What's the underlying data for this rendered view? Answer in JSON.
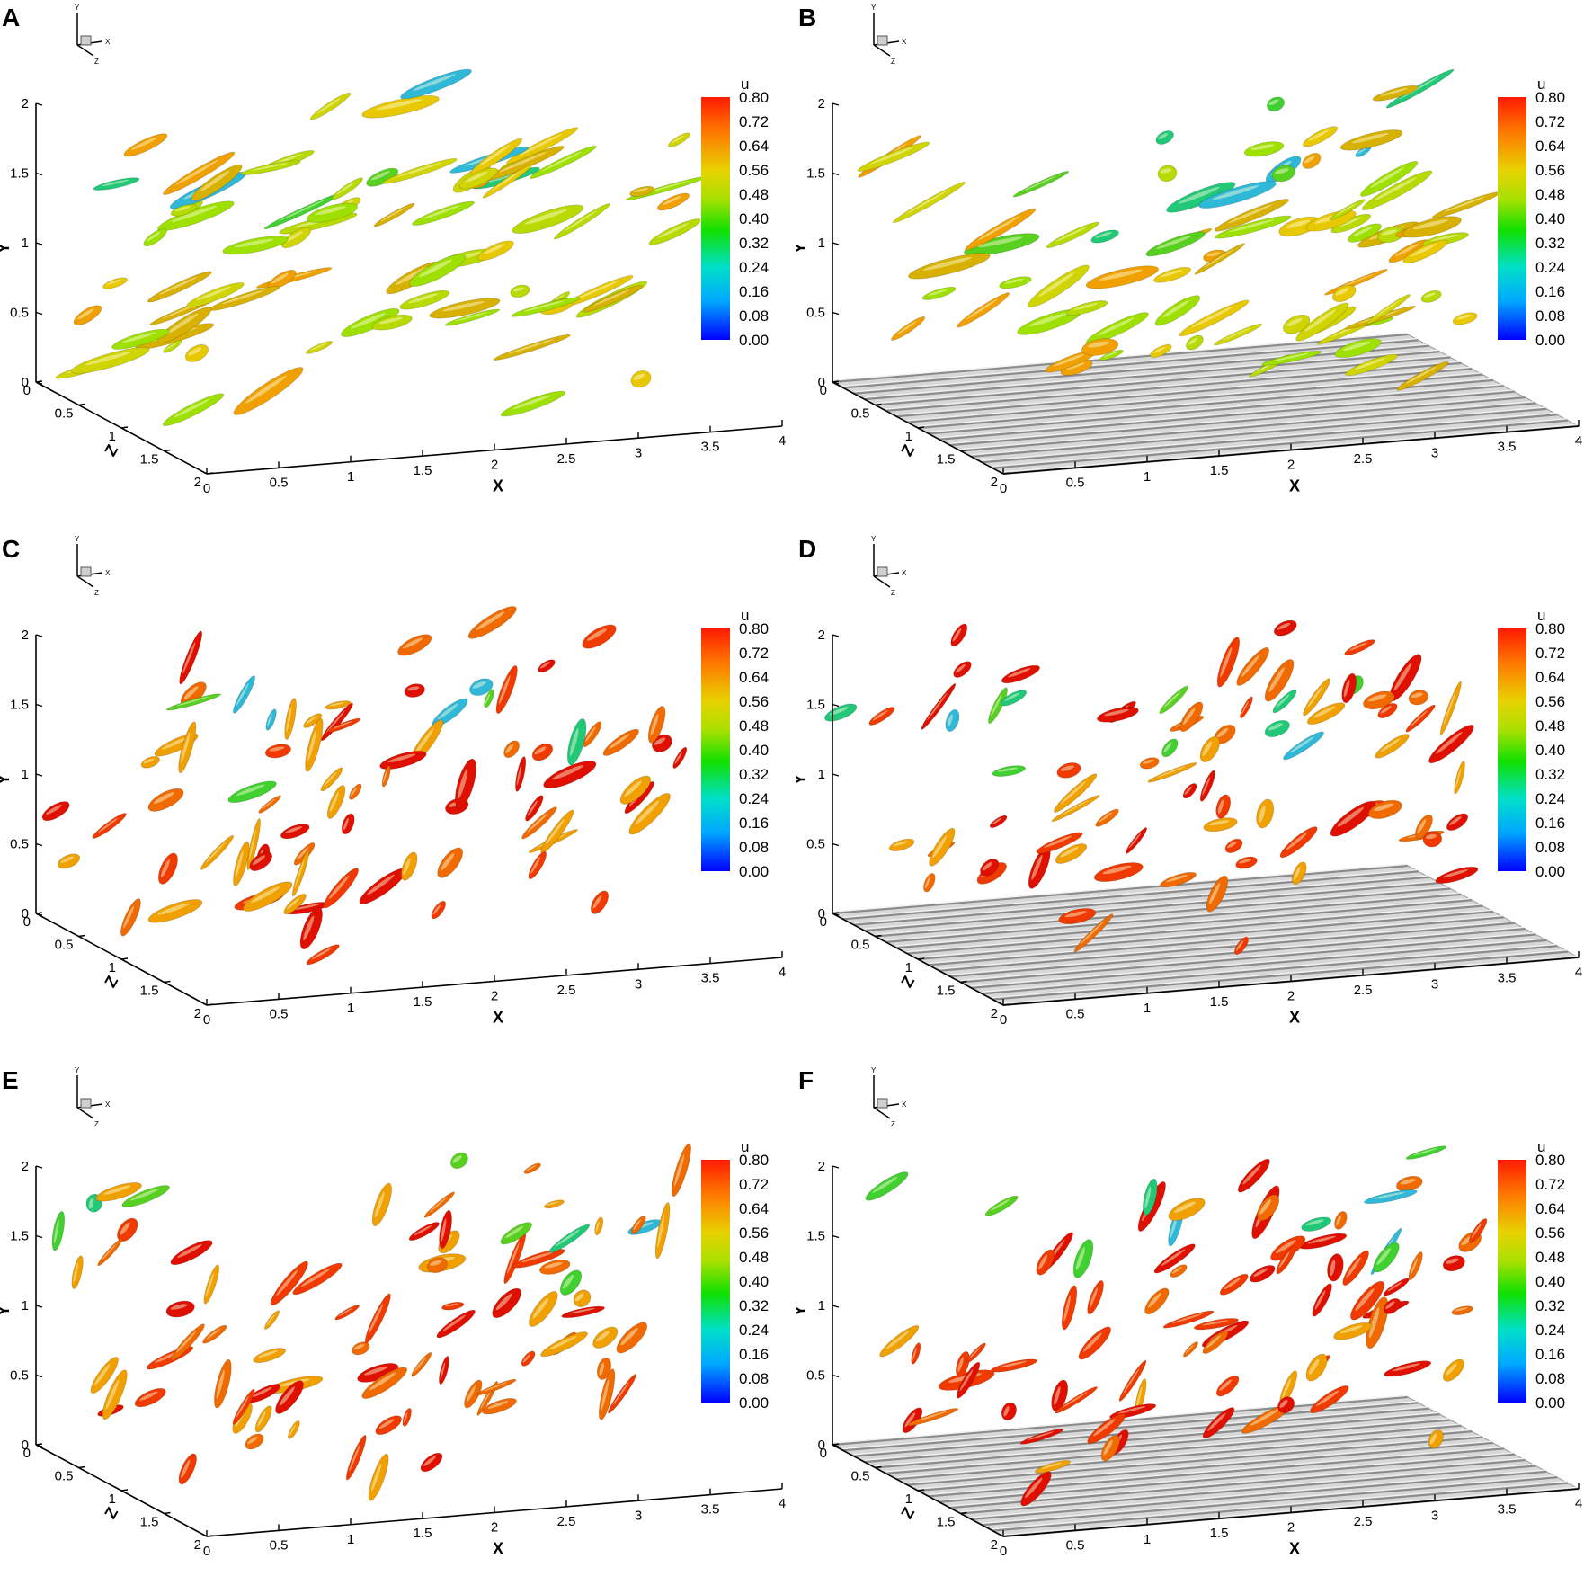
{
  "figure": {
    "colorbar_title": "u",
    "colorbar_levels": [
      "0.80",
      "0.72",
      "0.64",
      "0.56",
      "0.48",
      "0.40",
      "0.32",
      "0.24",
      "0.16",
      "0.08",
      "0.00"
    ],
    "colormap": [
      "#ff1a00",
      "#ff7700",
      "#e8d200",
      "#a8e000",
      "#10e000",
      "#00e0c8",
      "#00a8ff",
      "#0000ff"
    ],
    "axis_names": {
      "x": "X",
      "y": "Y",
      "z": "Z"
    },
    "triad_labels": {
      "x": "X",
      "y": "Y",
      "z": "Z"
    },
    "x_ticks": [
      "0",
      "0.5",
      "1",
      "1.5",
      "2",
      "2.5",
      "3",
      "3.5",
      "4"
    ],
    "y_ticks": [
      "0",
      "0.5",
      "1",
      "1.5",
      "2"
    ],
    "z_ticks": [
      "0",
      "0.5",
      "1",
      "1.5",
      "2"
    ],
    "panels": [
      {
        "label": "A",
        "riblets": false
      },
      {
        "label": "B",
        "riblets": true
      },
      {
        "label": "C",
        "riblets": false
      },
      {
        "label": "D",
        "riblets": true
      },
      {
        "label": "E",
        "riblets": false
      },
      {
        "label": "F",
        "riblets": true
      }
    ]
  }
}
